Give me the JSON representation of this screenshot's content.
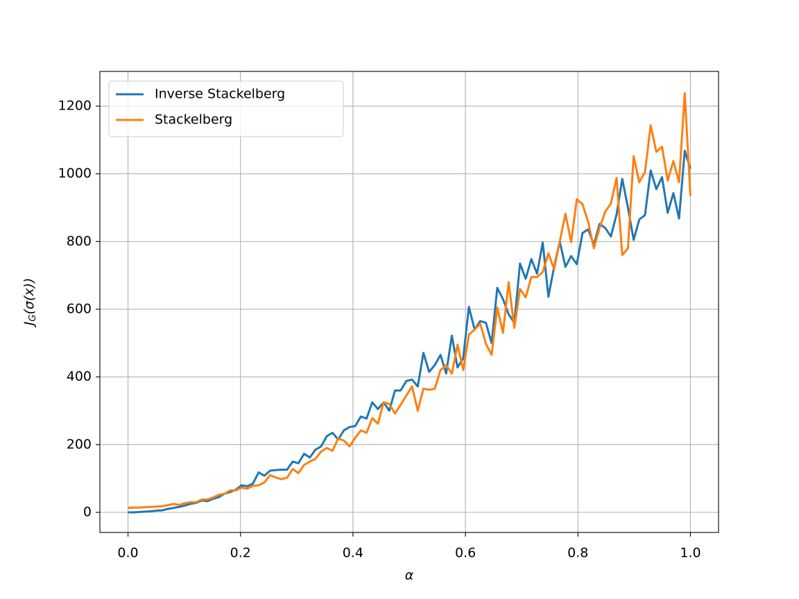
{
  "chart_data": {
    "type": "line",
    "x_label": "α",
    "y_label": [
      "J",
      "G",
      "(σ(x))"
    ],
    "x": [
      0,
      0.0101,
      0.0202,
      0.0303,
      0.0404,
      0.0505,
      0.0606,
      0.0707,
      0.0808,
      0.0909,
      0.101,
      0.1111,
      0.1212,
      0.1313,
      0.1414,
      0.1515,
      0.1616,
      0.1717,
      0.1818,
      0.1919,
      0.202,
      0.2121,
      0.2222,
      0.2323,
      0.2424,
      0.2525,
      0.2626,
      0.2727,
      0.2828,
      0.2929,
      0.303,
      0.3131,
      0.3232,
      0.3333,
      0.3434,
      0.3535,
      0.3636,
      0.3737,
      0.3838,
      0.3939,
      0.404,
      0.4141,
      0.4242,
      0.4343,
      0.4444,
      0.4545,
      0.4646,
      0.4747,
      0.4848,
      0.4949,
      0.5051,
      0.5152,
      0.5253,
      0.5354,
      0.5455,
      0.5556,
      0.5657,
      0.5758,
      0.5859,
      0.596,
      0.6061,
      0.6162,
      0.6263,
      0.6364,
      0.6465,
      0.6566,
      0.6667,
      0.6768,
      0.6869,
      0.697,
      0.7071,
      0.7172,
      0.7273,
      0.7374,
      0.7475,
      0.7576,
      0.7677,
      0.7778,
      0.7879,
      0.798,
      0.8081,
      0.8182,
      0.8283,
      0.8384,
      0.8485,
      0.8586,
      0.8687,
      0.8788,
      0.8889,
      0.899,
      0.9091,
      0.9192,
      0.9293,
      0.9394,
      0.9495,
      0.9596,
      0.9697,
      0.9798,
      0.9899,
      1
    ],
    "series": [
      {
        "name": "Inverse Stackelberg",
        "color": "#1f77b4",
        "values": [
          0,
          0,
          1,
          2,
          3,
          5,
          6,
          10,
          13,
          16,
          20,
          25,
          28,
          35,
          33,
          40,
          45,
          55,
          60,
          67,
          80,
          77,
          85,
          118,
          108,
          123,
          125,
          126,
          126,
          150,
          145,
          173,
          162,
          185,
          195,
          225,
          235,
          215,
          242,
          252,
          255,
          283,
          277,
          325,
          305,
          325,
          300,
          360,
          360,
          388,
          392,
          372,
          471,
          415,
          435,
          465,
          410,
          522,
          428,
          455,
          607,
          540,
          565,
          560,
          500,
          663,
          630,
          585,
          560,
          735,
          690,
          748,
          705,
          797,
          637,
          725,
          800,
          725,
          757,
          733,
          825,
          836,
          790,
          852,
          840,
          815,
          880,
          985,
          900,
          805,
          865,
          878,
          1010,
          955,
          990,
          885,
          943,
          868,
          1068,
          1015
        ]
      },
      {
        "name": "Stackelberg",
        "color": "#ff7f0e",
        "values": [
          13,
          14,
          14,
          15,
          16,
          17,
          18,
          21,
          25,
          22,
          27,
          30,
          30,
          38,
          38,
          44,
          52,
          55,
          65,
          65,
          73,
          70,
          78,
          80,
          88,
          110,
          103,
          98,
          102,
          128,
          116,
          140,
          150,
          158,
          180,
          190,
          182,
          218,
          212,
          195,
          220,
          242,
          235,
          278,
          262,
          325,
          320,
          292,
          318,
          345,
          372,
          300,
          365,
          362,
          365,
          420,
          435,
          410,
          495,
          420,
          525,
          540,
          557,
          498,
          465,
          605,
          530,
          680,
          545,
          660,
          635,
          695,
          695,
          710,
          765,
          718,
          800,
          882,
          798,
          925,
          910,
          858,
          780,
          840,
          888,
          912,
          988,
          760,
          780,
          1052,
          975,
          1005,
          1143,
          1065,
          1080,
          980,
          1038,
          975,
          1238,
          935
        ]
      }
    ],
    "xlim": [
      -0.05,
      1.05
    ],
    "ylim": [
      -59.4,
      1302.5
    ],
    "xticks": [
      {
        "value": 0,
        "label": "0.0"
      },
      0.2,
      0.4,
      0.6,
      0.8,
      {
        "value": 1,
        "label": "1.0"
      }
    ],
    "yticks": [
      0,
      200,
      400,
      600,
      800,
      1000,
      1200
    ],
    "grid": true,
    "legend": "upper left"
  }
}
